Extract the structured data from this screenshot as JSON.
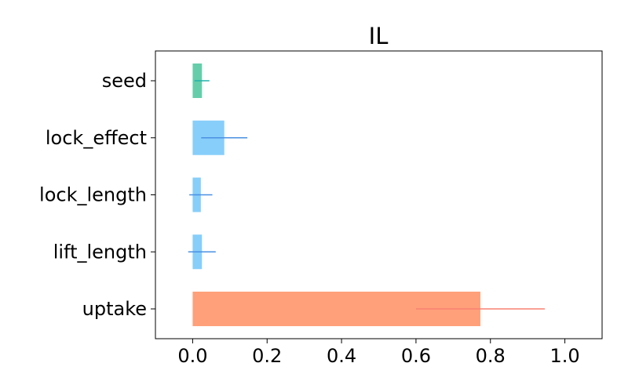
{
  "chart_data": {
    "type": "bar",
    "orientation": "horizontal",
    "title": "IL",
    "xlabel": "",
    "ylabel": "",
    "xlim": [
      -0.1,
      1.1
    ],
    "xticks": [
      0.0,
      0.2,
      0.4,
      0.6,
      0.8,
      1.0
    ],
    "xtick_labels": [
      "0.0",
      "0.2",
      "0.4",
      "0.6",
      "0.8",
      "1.0"
    ],
    "categories": [
      "seed",
      "lock_effect",
      "lock_length",
      "lift_length",
      "uptake"
    ],
    "values": [
      0.025,
      0.085,
      0.022,
      0.025,
      0.773
    ],
    "errors": [
      0.02,
      0.062,
      0.031,
      0.037,
      0.173
    ],
    "bar_colors": [
      "#66cdaa",
      "#87cefa",
      "#87cefa",
      "#87cefa",
      "#ffa07a"
    ],
    "error_colors": [
      "#20b2aa",
      "#4a90e2",
      "#4a90e2",
      "#4a90e2",
      "#fa8072"
    ],
    "grid": false,
    "legend": "none"
  }
}
